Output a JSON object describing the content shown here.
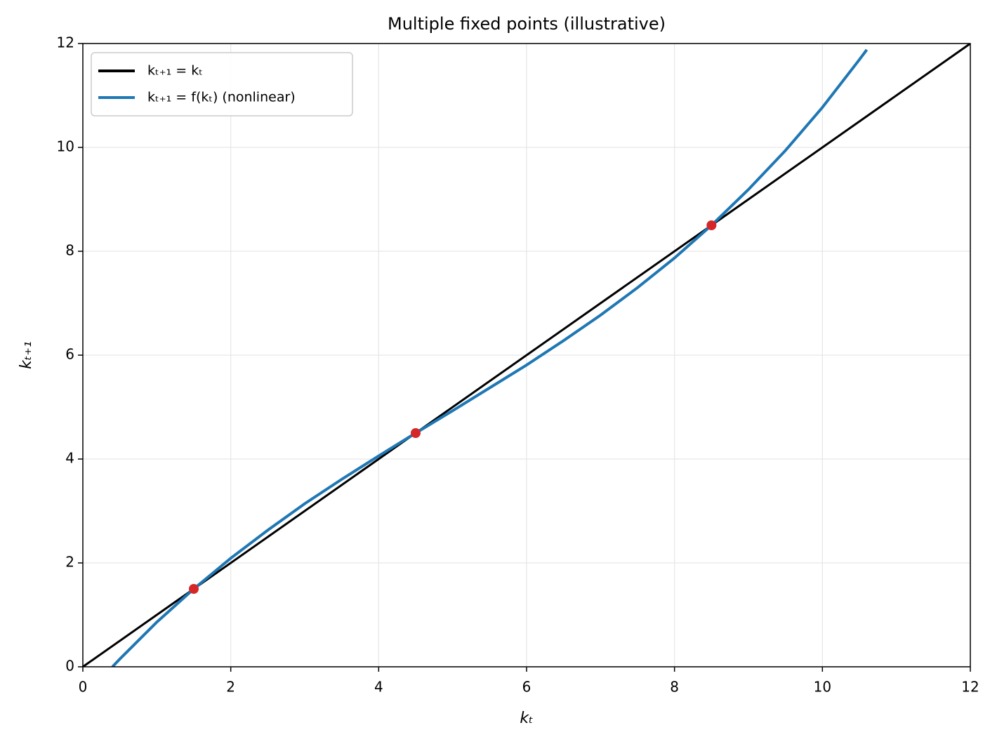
{
  "chart_data": {
    "type": "line",
    "title": "Multiple fixed points (illustrative)",
    "xlabel": "kₜ",
    "ylabel": "kₜ₊₁",
    "xlim": [
      0,
      12
    ],
    "ylim": [
      0,
      12
    ],
    "xticks": [
      0,
      2,
      4,
      6,
      8,
      10,
      12
    ],
    "yticks": [
      0,
      2,
      4,
      6,
      8,
      10,
      12
    ],
    "grid": true,
    "legend": "upper left",
    "series": [
      {
        "name": "kₜ₊₁ = kₜ",
        "color": "#000000",
        "x": [
          0,
          12
        ],
        "values": [
          0,
          12
        ]
      },
      {
        "name": "kₜ₊₁ = f(kₜ) (nonlinear)",
        "color": "#1f77b4",
        "x": [
          0.4,
          0.5,
          1,
          1.5,
          2,
          2.5,
          3,
          3.5,
          4,
          4.5,
          5,
          5.5,
          6,
          6.5,
          7,
          7.5,
          8,
          8.5,
          9,
          9.5,
          10,
          10.5,
          10.6
        ],
        "values": [
          0.0,
          0.15,
          0.86,
          1.5,
          2.09,
          2.63,
          3.14,
          3.61,
          4.06,
          4.5,
          4.93,
          5.37,
          5.81,
          6.28,
          6.77,
          7.3,
          7.87,
          8.5,
          9.19,
          9.94,
          10.77,
          11.69,
          11.88
        ]
      },
      {
        "mode": "markers",
        "color": "#d62728",
        "x": [
          1.5,
          4.5,
          8.5
        ],
        "values": [
          1.5,
          4.5,
          8.5
        ]
      }
    ]
  }
}
